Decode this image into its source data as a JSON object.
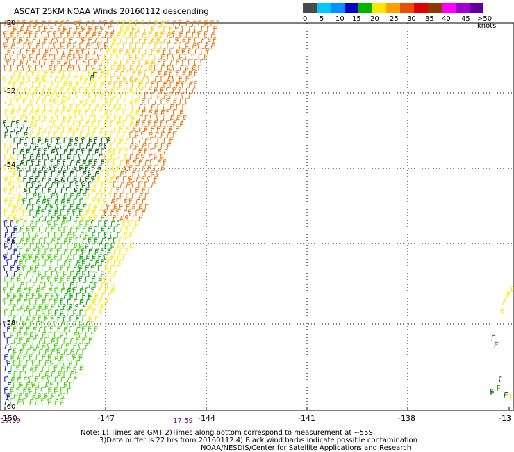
{
  "title": "ASCAT 25KM NOAA Winds 20160112 descending",
  "scale": {
    "labels": [
      "0",
      "5",
      "10",
      "15",
      "20",
      "25",
      "30",
      "35",
      "40",
      "45",
      ">50 knots"
    ],
    "colors": [
      "#4a4a4a",
      "#00c8ff",
      "#0090ff",
      "#0000c8",
      "#00b400",
      "#ffe600",
      "#ffa000",
      "#e85000",
      "#e00000",
      "#8b3a00",
      "#ff00ff",
      "#a000d0",
      "#6000a0"
    ]
  },
  "axes": {
    "lat_labels": [
      "-50",
      "-52",
      "-54",
      "-56",
      "-58",
      "-60"
    ],
    "lon_labels": [
      "-150",
      "-147",
      "-144",
      "-141",
      "-138",
      "-13"
    ]
  },
  "times": {
    "left": "17:59",
    "middle": "17:59"
  },
  "notes": {
    "line1": "Note: 1) Times are GMT 2)Times along bottom correspond to measurement at ~55S",
    "line2": "3)Data buffer is 22 hrs from 20160112 4) Black wind barbs indicate possible contamination",
    "line3": "NOAA/NESDIS/Center for Satellite Applications and Research"
  },
  "barb_colors": {
    "orange": "#e87000",
    "gold": "#ffc000",
    "yellow": "#ffe800",
    "dark_green": "#006000",
    "green": "#00a000",
    "light_green": "#40d000",
    "blue": "#1010b0"
  }
}
